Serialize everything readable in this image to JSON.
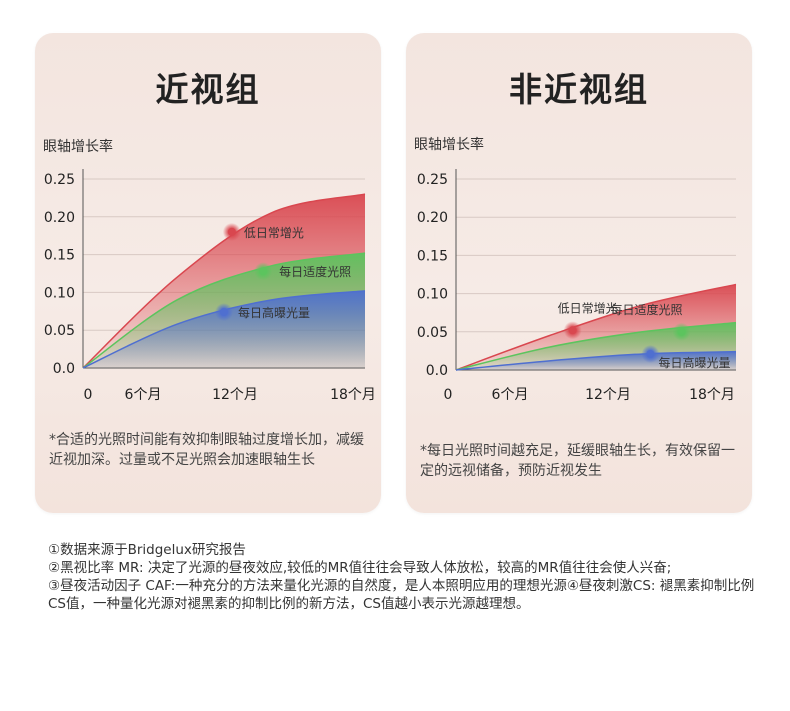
{
  "panels": [
    {
      "title": "近视组",
      "ylabel": "眼轴增长率",
      "note": "*合适的光照时间能有效抑制眼轴过度增长加，减缓近视加深。过量或不足光照会加速眼轴生长"
    },
    {
      "title": "非近视组",
      "ylabel": "眼轴增长率",
      "note": "*每日光照时间越充足，延缓眼轴生长，有效保留一定的远视储备，预防近视发生"
    }
  ],
  "chart_data": [
    {
      "type": "area",
      "title": "近视组",
      "ylabel": "眼轴增长率",
      "x": [
        0,
        6,
        12,
        18
      ],
      "xticklabels": [
        "0",
        "6个月",
        "12个月",
        "18个月"
      ],
      "yticks": [
        0.0,
        0.05,
        0.1,
        0.15,
        0.2,
        0.25
      ],
      "yticklabels": [
        "0.0",
        "0.05",
        "0.10",
        "0.15",
        "0.20",
        "0.25"
      ],
      "ylim": [
        0,
        0.25
      ],
      "xlim": [
        0,
        18
      ],
      "grid": true,
      "series": [
        {
          "name": "低日常增光",
          "color": "#d9474f",
          "values": [
            0.0,
            0.12,
            0.205,
            0.23
          ],
          "marker": {
            "x": 9.5,
            "y": 0.18
          }
        },
        {
          "name": "每日适度光照",
          "color": "#5cc45e",
          "values": [
            0.0,
            0.09,
            0.135,
            0.152
          ],
          "marker": {
            "x": 11.5,
            "y": 0.128
          }
        },
        {
          "name": "每日高曝光量",
          "color": "#4f6fd0",
          "values": [
            0.0,
            0.058,
            0.09,
            0.102
          ],
          "marker": {
            "x": 9,
            "y": 0.074
          }
        }
      ]
    },
    {
      "type": "area",
      "title": "非近视组",
      "ylabel": "眼轴增长率",
      "x": [
        0,
        6,
        12,
        18
      ],
      "xticklabels": [
        "0",
        "6个月",
        "12个月",
        "18个月"
      ],
      "yticks": [
        0.0,
        0.05,
        0.1,
        0.15,
        0.2,
        0.25
      ],
      "yticklabels": [
        "0.0",
        "0.05",
        "0.10",
        "0.15",
        "0.20",
        "0.25"
      ],
      "ylim": [
        0,
        0.25
      ],
      "xlim": [
        0,
        18
      ],
      "grid": true,
      "series": [
        {
          "name": "低日常增光",
          "color": "#d9474f",
          "values": [
            0.0,
            0.045,
            0.085,
            0.112
          ],
          "marker": {
            "x": 7.5,
            "y": 0.052
          }
        },
        {
          "name": "每日适度光照",
          "color": "#5cc45e",
          "values": [
            0.0,
            0.03,
            0.05,
            0.062
          ],
          "marker": {
            "x": 14.5,
            "y": 0.05
          }
        },
        {
          "name": "每日高曝光量",
          "color": "#4f6fd0",
          "values": [
            0.0,
            0.012,
            0.021,
            0.024
          ],
          "marker": {
            "x": 12.5,
            "y": 0.021
          }
        }
      ]
    }
  ],
  "footnotes": [
    "①数据来源于Bridgelux研究报告",
    "②黑视比率 MR: 决定了光源的昼夜效应,较低的MR值往往会导致人体放松，较高的MR值往往会使人兴奋;",
    "③昼夜活动因子 CAF:一种充分的方法来量化光源的自然度，是人本照明应用的理想光源④昼夜刺激CS: 褪黑素抑制比例CS值，一种量化光源对褪黑素的抑制比例的新方法，CS值越小表示光源越理想。"
  ]
}
